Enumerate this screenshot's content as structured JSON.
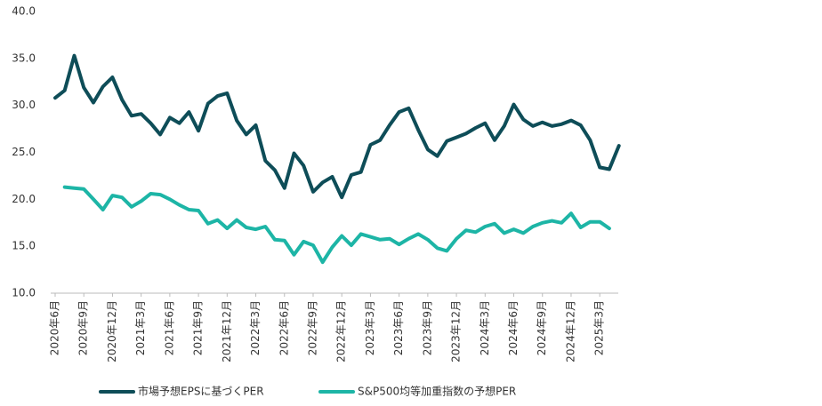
{
  "chart_data": {
    "type": "line",
    "categories": [
      "2020年6月",
      null,
      null,
      "2020年9月",
      null,
      null,
      "2020年12月",
      null,
      null,
      "2021年3月",
      null,
      null,
      "2021年6月",
      null,
      null,
      "2021年9月",
      null,
      null,
      "2021年12月",
      null,
      null,
      "2022年3月",
      null,
      null,
      "2022年6月",
      null,
      null,
      "2022年9月",
      null,
      null,
      "2022年12月",
      null,
      null,
      "2023年3月",
      null,
      null,
      "2023年6月",
      null,
      null,
      "2023年9月",
      null,
      null,
      "2023年12月",
      null,
      null,
      "2024年3月",
      null,
      null,
      "2024年6月",
      null,
      null,
      "2024年9月",
      null,
      null,
      "2024年12月",
      null,
      null,
      "2025年3月",
      null,
      null
    ],
    "series": [
      {
        "name": "市場予想EPSに基づくPER",
        "color": "#0e4d58",
        "values": [
          30.8,
          31.6,
          35.3,
          31.9,
          30.3,
          32.0,
          33.0,
          30.6,
          28.9,
          29.1,
          28.1,
          26.9,
          28.7,
          28.1,
          29.3,
          27.3,
          30.2,
          31.0,
          31.3,
          28.4,
          26.9,
          27.9,
          24.1,
          23.1,
          21.2,
          24.9,
          23.6,
          20.8,
          21.8,
          22.4,
          20.2,
          22.6,
          22.9,
          25.8,
          26.3,
          27.9,
          29.3,
          29.7,
          27.4,
          25.3,
          24.6,
          26.2,
          26.6,
          27.0,
          27.6,
          28.1,
          26.3,
          27.8,
          30.1,
          28.5,
          27.8,
          28.2,
          27.8,
          28.0,
          28.4,
          27.9,
          26.3,
          23.4,
          23.2,
          25.7
        ]
      },
      {
        "name": "S&P500均等加重指数の予想PER",
        "color": "#1db5a6",
        "values": [
          null,
          21.3,
          21.2,
          21.1,
          20.0,
          18.9,
          20.4,
          20.2,
          19.2,
          19.8,
          20.6,
          20.5,
          20.0,
          19.4,
          18.9,
          18.8,
          17.4,
          17.8,
          16.9,
          17.8,
          17.0,
          16.8,
          17.1,
          15.7,
          15.6,
          14.1,
          15.5,
          15.1,
          13.3,
          14.9,
          16.1,
          15.1,
          16.3,
          16.0,
          15.7,
          15.8,
          15.2,
          15.8,
          16.3,
          15.7,
          14.8,
          14.5,
          15.8,
          16.7,
          16.5,
          17.1,
          17.4,
          16.4,
          16.8,
          16.4,
          17.1,
          17.5,
          17.7,
          17.5,
          18.5,
          17.0,
          17.6,
          17.6,
          16.9,
          null
        ]
      }
    ],
    "ylim": [
      10,
      40
    ],
    "yticks": [
      {
        "value": 10,
        "label": "10.0"
      },
      {
        "value": 15,
        "label": "15.0"
      },
      {
        "value": 20,
        "label": "20.0"
      },
      {
        "value": 25,
        "label": "25.0"
      },
      {
        "value": 30,
        "label": "30.0"
      },
      {
        "value": 35,
        "label": "35.0"
      },
      {
        "value": 40,
        "label": "40.0"
      }
    ],
    "grid": false,
    "legend": "bottom"
  }
}
